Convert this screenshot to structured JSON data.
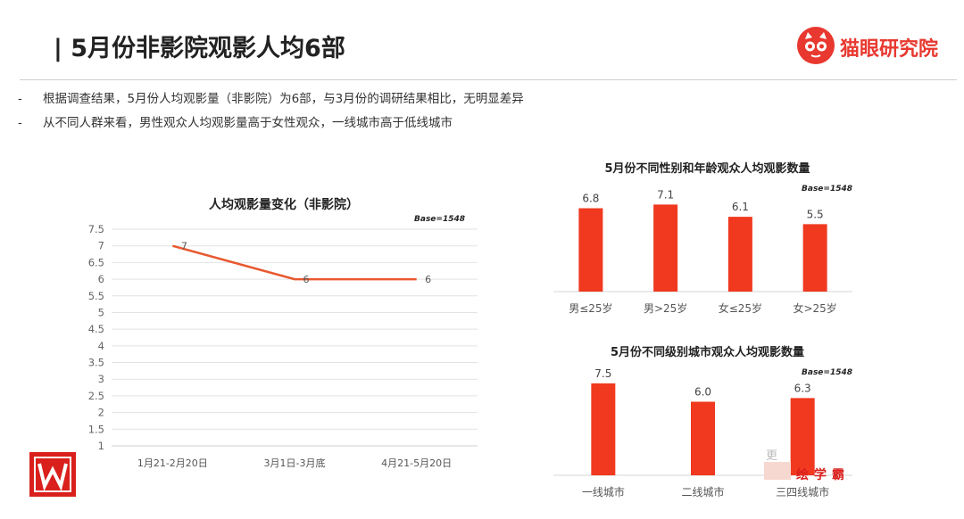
{
  "header": {
    "title": "| 5月份非影院观影人均6部",
    "logo_text": "猫眼研究院"
  },
  "bullets": [
    {
      "dash": "-",
      "text": "根据调查结果，5月份人均观影量（非影院）为6部，与3月份的调研结果相比，无明显差异"
    },
    {
      "dash": "-",
      "text": "从不同人群来看，男性观众人均观影量高于女性观众，一线城市高于低线城市"
    }
  ],
  "chart_data": [
    {
      "type": "line",
      "title": "人均观影量变化（非影院）",
      "base_label": "Base=1548",
      "categories": [
        "1月21-2月20日",
        "3月1日-3月底",
        "4月21-5月20日"
      ],
      "values": [
        7,
        6,
        6
      ],
      "data_labels": [
        "7",
        "6",
        "6"
      ],
      "ylim": [
        1,
        7.5
      ],
      "yticks": [
        "1",
        "1.5",
        "2",
        "2.5",
        "3",
        "3.5",
        "4",
        "4.5",
        "5",
        "5.5",
        "6",
        "6.5",
        "7",
        "7.5"
      ],
      "grid": true,
      "color": "#e8582f"
    },
    {
      "type": "bar",
      "title": "5月份不同性别和年龄观众人均观影数量",
      "base_label": "Base=1548",
      "categories": [
        "男≤25岁",
        "男>25岁",
        "女≤25岁",
        "女>25岁"
      ],
      "values": [
        6.8,
        7.1,
        6.1,
        5.5
      ],
      "data_labels": [
        "6.8",
        "7.1",
        "6.1",
        "5.5"
      ],
      "ylim": [
        0,
        8
      ],
      "color": "#f0391f"
    },
    {
      "type": "bar",
      "title": "5月份不同级别城市观众人均观影数量",
      "base_label": "Base=1548",
      "categories": [
        "一线城市",
        "二线城市",
        "三四线城市"
      ],
      "values": [
        7.5,
        6.0,
        6.3
      ],
      "data_labels": [
        "7.5",
        "6.0",
        "6.3"
      ],
      "ylim": [
        0,
        8
      ],
      "color": "#f0391f"
    }
  ],
  "watermark": {
    "top_text": "更",
    "bottom_text": "绘学霸"
  }
}
